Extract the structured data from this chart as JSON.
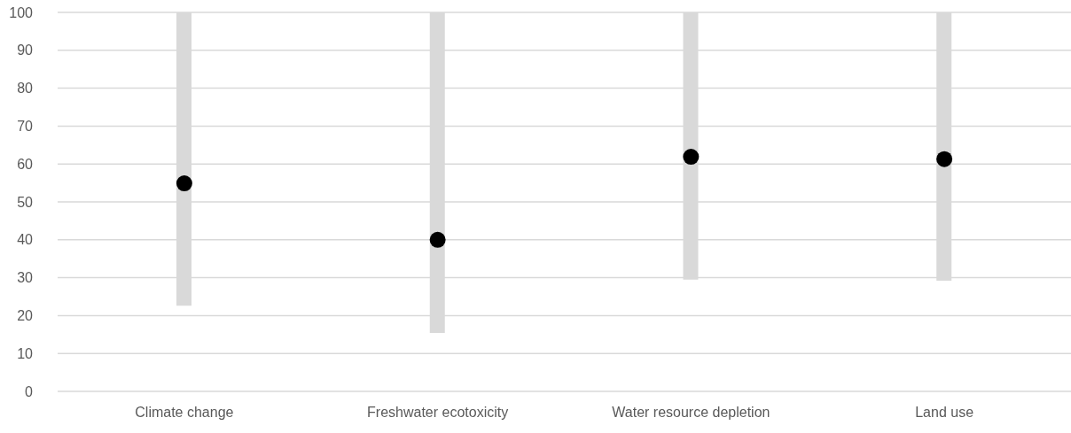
{
  "chart_data": {
    "type": "bar",
    "categories": [
      "Climate change",
      "Freshwater ecotoxicity",
      "Water resource depletion",
      "Land use"
    ],
    "series": [
      {
        "color": "#d9d9d9",
        "base": [
          22.6,
          15.4,
          29.5,
          29.2
        ],
        "values": [
          77.4,
          84.6,
          70.5,
          70.8
        ]
      },
      {
        "type": "scatter",
        "color": "#000000",
        "values": [
          54.9,
          40.0,
          61.9,
          61.3
        ]
      }
    ],
    "marker": "circle",
    "ylim": [
      0,
      100
    ],
    "yticks": [
      0,
      10,
      20,
      30,
      40,
      50,
      60,
      70,
      80,
      90,
      100
    ],
    "grid": "y",
    "legend": false
  }
}
